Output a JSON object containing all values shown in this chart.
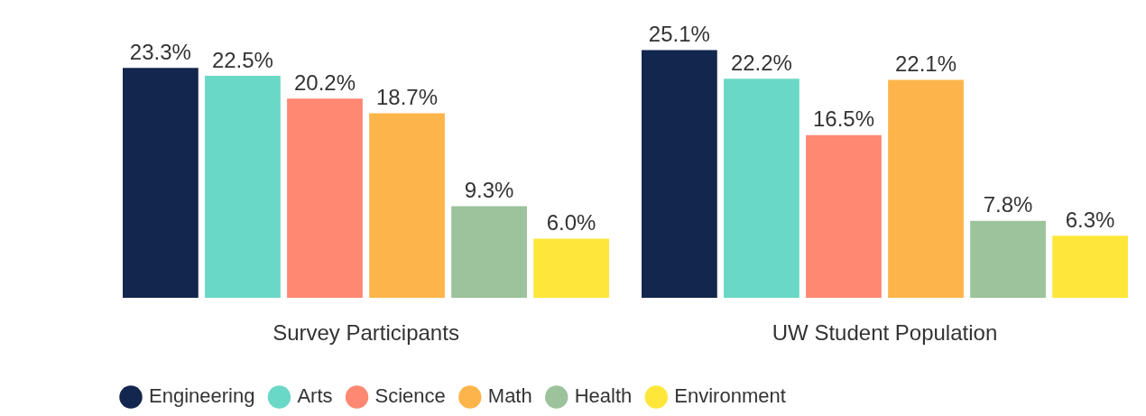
{
  "chart_data": {
    "type": "bar",
    "categories": [
      "Survey Participants",
      "UW Student Population"
    ],
    "series": [
      {
        "name": "Engineering",
        "color": "#13264d",
        "values": [
          23.3,
          25.1
        ],
        "value_labels": [
          "23.3%",
          "25.1%"
        ]
      },
      {
        "name": "Arts",
        "color": "#6ad8c6",
        "values": [
          22.5,
          22.2
        ],
        "value_labels": [
          "22.5%",
          "22.2%"
        ]
      },
      {
        "name": "Science",
        "color": "#fe8872",
        "values": [
          20.2,
          16.5
        ],
        "value_labels": [
          "20.2%",
          "16.5%"
        ]
      },
      {
        "name": "Math",
        "color": "#fdb54b",
        "values": [
          18.7,
          22.1
        ],
        "value_labels": [
          "18.7%",
          "22.1%"
        ]
      },
      {
        "name": "Health",
        "color": "#9cc39b",
        "values": [
          9.3,
          7.8
        ],
        "value_labels": [
          "9.3%",
          "7.8%"
        ]
      },
      {
        "name": "Environment",
        "color": "#fee73a",
        "values": [
          6.0,
          6.3
        ],
        "value_labels": [
          "6.0%",
          "6.3%"
        ]
      }
    ],
    "legend": "bottom",
    "grid": false,
    "tick_labels": "x"
  }
}
